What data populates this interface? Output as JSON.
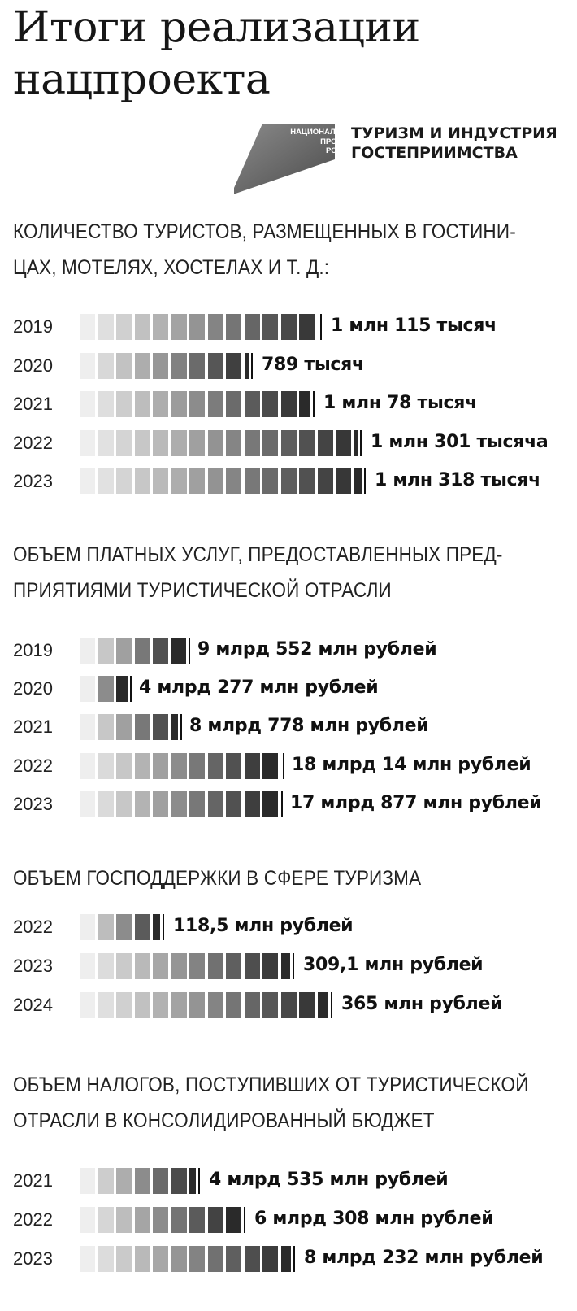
{
  "title_lines": [
    "Итоги реализации",
    "нацпроекта"
  ],
  "logo": {
    "small_lines": [
      "НАЦИОНАЛЬНЫЕ",
      "ПРОЕКТЫ",
      "РОССИИ"
    ],
    "text_lines": [
      "ТУРИЗМ И ИНДУСТРИЯ",
      "ГОСТЕПРИИМСТВА"
    ]
  },
  "colors": {
    "bar_light": "#eeeeee",
    "bar_dark": "#1e1e1e",
    "tick": "#111111"
  },
  "chart_data": [
    {
      "type": "bar",
      "orientation": "horizontal",
      "title": "КОЛИЧЕСТВО ТУРИСТОВ, РАЗМЕЩЕННЫХ В ГОСТИНИЦАХ, МОТЕЛЯХ, ХОСТЕЛАХ И Т. Д.:",
      "title_lines": [
        "КОЛИЧЕСТВО ТУРИСТОВ, РАЗМЕЩЕННЫХ В ГОСТИНИ-",
        "ЦАХ, МОТЕЛЯХ, ХОСТЕЛАХ И Т. Д.:"
      ],
      "unit": "thousand tourists",
      "categories": [
        "2019",
        "2020",
        "2021",
        "2022",
        "2023"
      ],
      "values": [
        1115,
        789,
        1078,
        1301,
        1318
      ],
      "labels": [
        "1 млн 115 тысяч",
        "789 тысяч",
        "1 млн 78 тысяч",
        "1 млн 301 тысяча",
        "1 млн 318 тысяч"
      ]
    },
    {
      "type": "bar",
      "orientation": "horizontal",
      "title": "ОБЪЕМ ПЛАТНЫХ УСЛУГ, ПРЕДОСТАВЛЕННЫХ ПРЕДПРИЯТИЯМИ ТУРИСТИЧЕСКОЙ ОТРАСЛИ",
      "title_lines": [
        "ОБЪЕМ ПЛАТНЫХ УСЛУГ, ПРЕДОСТАВЛЕННЫХ ПРЕД-",
        "ПРИЯТИЯМИ ТУРИСТИЧЕСКОЙ ОТРАСЛИ"
      ],
      "unit": "million rubles",
      "categories": [
        "2019",
        "2020",
        "2021",
        "2022",
        "2023"
      ],
      "values": [
        9552,
        4277,
        8778,
        18014,
        17877
      ],
      "labels": [
        "9 млрд 552 млн рублей",
        "4 млрд 277 млн рублей",
        "8 млрд 778 млн рублей",
        "18 млрд 14 млн рублей",
        "17 млрд 877 млн рублей"
      ]
    },
    {
      "type": "bar",
      "orientation": "horizontal",
      "title": "ОБЪЕМ ГОСПОДДЕРЖКИ В СФЕРЕ ТУРИЗМА",
      "title_lines": [
        "ОБЪЕМ ГОСПОДДЕРЖКИ В СФЕРЕ ТУРИЗМА"
      ],
      "unit": "million rubles",
      "categories": [
        "2022",
        "2023",
        "2024"
      ],
      "values": [
        118.5,
        309.1,
        365
      ],
      "labels": [
        "118,5 млн рублей",
        "309,1 млн рублей",
        "365 млн рублей"
      ]
    },
    {
      "type": "bar",
      "orientation": "horizontal",
      "title": "ОБЪЕМ НАЛОГОВ, ПОСТУПИВШИХ ОТ ТУРИСТИЧЕСКОЙ ОТРАСЛИ В КОНСОЛИДИРОВАННЫЙ БЮДЖЕТ",
      "title_lines": [
        "ОБЪЕМ НАЛОГОВ, ПОСТУПИВШИХ ОТ ТУРИСТИЧЕСКОЙ",
        "ОТРАСЛИ В КОНСОЛИДИРОВАННЫЙ БЮДЖЕТ"
      ],
      "unit": "million rubles",
      "categories": [
        "2021",
        "2022",
        "2023"
      ],
      "values": [
        4535,
        6308,
        8232
      ],
      "labels": [
        "4 млрд 535 млн рублей",
        "6 млрд 308 млн рублей",
        "8 млрд 232 млн рублей"
      ]
    }
  ]
}
